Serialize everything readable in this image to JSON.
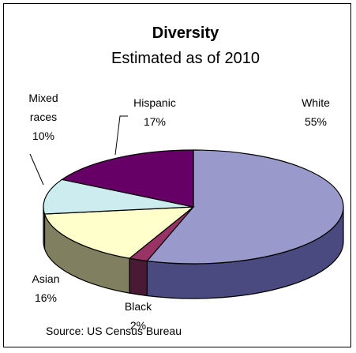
{
  "chart_data": {
    "type": "pie",
    "title": "Diversity",
    "subtitle": "Estimated as of 2010",
    "source": "Source: US Census Bureau",
    "slices": [
      {
        "label": "White",
        "value": 55,
        "value_label": "55%",
        "color": "#9999cc",
        "side_color": "#4a4a80",
        "label_lines": [
          "White",
          "55%"
        ]
      },
      {
        "label": "Black",
        "value": 2,
        "value_label": "2%",
        "color": "#993366",
        "side_color": "#4a1a35",
        "label_lines": [
          "Black",
          "2%"
        ]
      },
      {
        "label": "Asian",
        "value": 16,
        "value_label": "16%",
        "color": "#ffffcc",
        "side_color": "#808060",
        "label_lines": [
          "Asian",
          "16%"
        ]
      },
      {
        "label": "Mixed races",
        "value": 10,
        "value_label": "10%",
        "color": "#ccecf0",
        "side_color": "#6a8a90",
        "label_lines": [
          "Mixed",
          "races",
          "10%"
        ]
      },
      {
        "label": "Hispanic",
        "value": 17,
        "value_label": "17%",
        "color": "#660066",
        "side_color": "#330033",
        "label_lines": [
          "Hispanic",
          "17%"
        ]
      }
    ]
  }
}
